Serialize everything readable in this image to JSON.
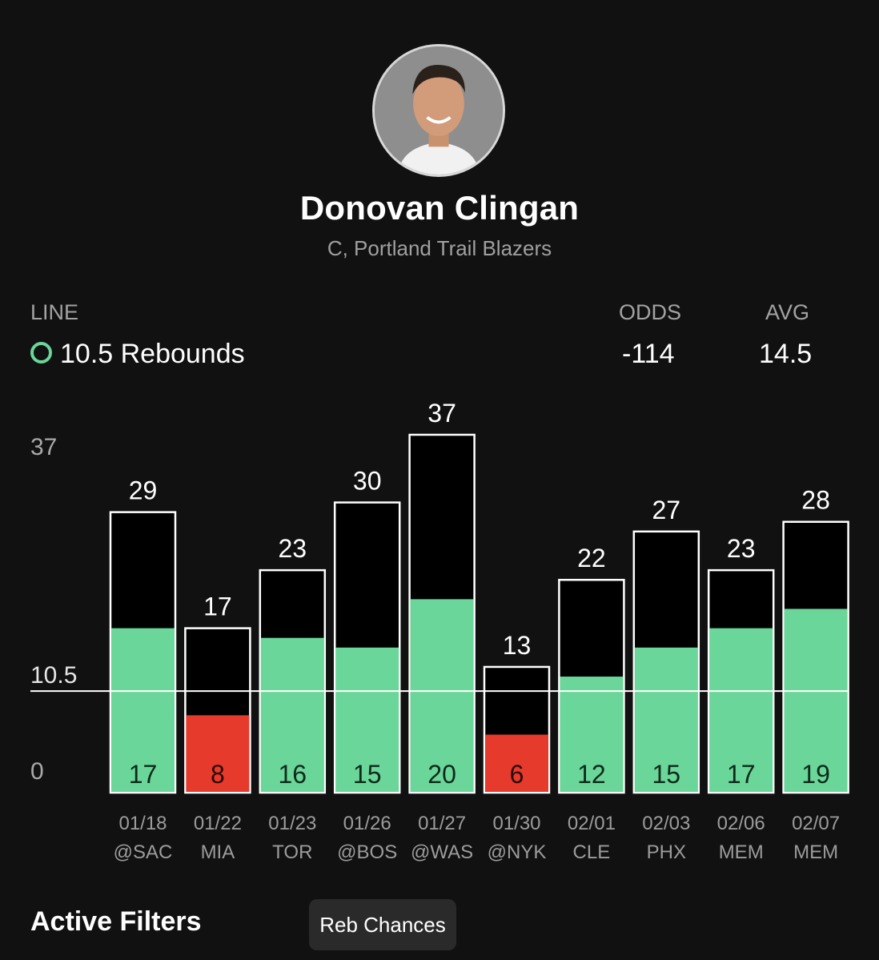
{
  "player": {
    "name": "Donovan Clingan",
    "subtitle": "C, Portland Trail Blazers"
  },
  "header": {
    "line_label": "LINE",
    "line_value": "10.5 Rebounds",
    "line_marker": "O",
    "odds_label": "ODDS",
    "odds_value": "-114",
    "avg_label": "AVG",
    "avg_value": "14.5"
  },
  "colors": {
    "over": "#6bd69a",
    "under": "#e53a2c",
    "background": "#111111"
  },
  "chart_data": {
    "type": "bar",
    "ylim": [
      0,
      37
    ],
    "y_ticks": [
      "37",
      "10.5",
      "0"
    ],
    "threshold": 10.5,
    "categories": [
      "01/18",
      "01/22",
      "01/23",
      "01/26",
      "01/27",
      "01/30",
      "02/01",
      "02/03",
      "02/06",
      "02/07"
    ],
    "opponents": [
      "@SAC",
      "MIA",
      "TOR",
      "@BOS",
      "@WAS",
      "@NYK",
      "CLE",
      "PHX",
      "MEM",
      "MEM"
    ],
    "series": [
      {
        "name": "Reb Chances",
        "values": [
          29,
          17,
          23,
          30,
          37,
          13,
          22,
          27,
          23,
          28
        ]
      },
      {
        "name": "Rebounds",
        "values": [
          17,
          8,
          16,
          15,
          20,
          6,
          12,
          15,
          17,
          19
        ]
      }
    ]
  },
  "filters": {
    "title": "Active Filters",
    "chips": [
      "Reb Chances"
    ]
  }
}
